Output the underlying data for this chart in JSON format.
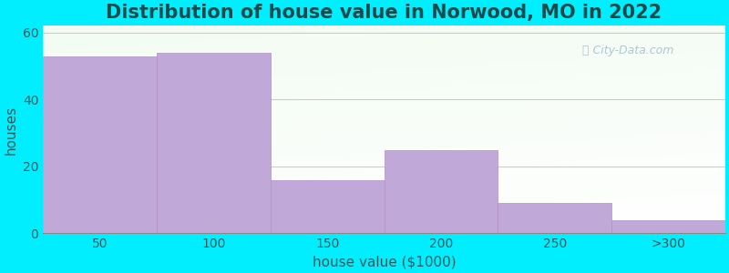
{
  "title": "Distribution of house value in Norwood, MO in 2022",
  "xlabel": "house value ($1000)",
  "ylabel": "houses",
  "categories": [
    "50",
    "100",
    "150",
    "200",
    "250",
    ">300"
  ],
  "values": [
    53,
    54,
    16,
    25,
    9,
    4
  ],
  "bar_color": "#c0a8d8",
  "bar_edgecolor": "#b090c8",
  "ylim": [
    0,
    62
  ],
  "yticks": [
    0,
    20,
    40,
    60
  ],
  "background_outer": "#00eeff",
  "title_color": "#1a4a4a",
  "axis_label_color": "#2a5a5a",
  "tick_color": "#2a5a5a",
  "title_fontsize": 15,
  "axis_label_fontsize": 11,
  "tick_fontsize": 10,
  "bar_width": 1.0
}
